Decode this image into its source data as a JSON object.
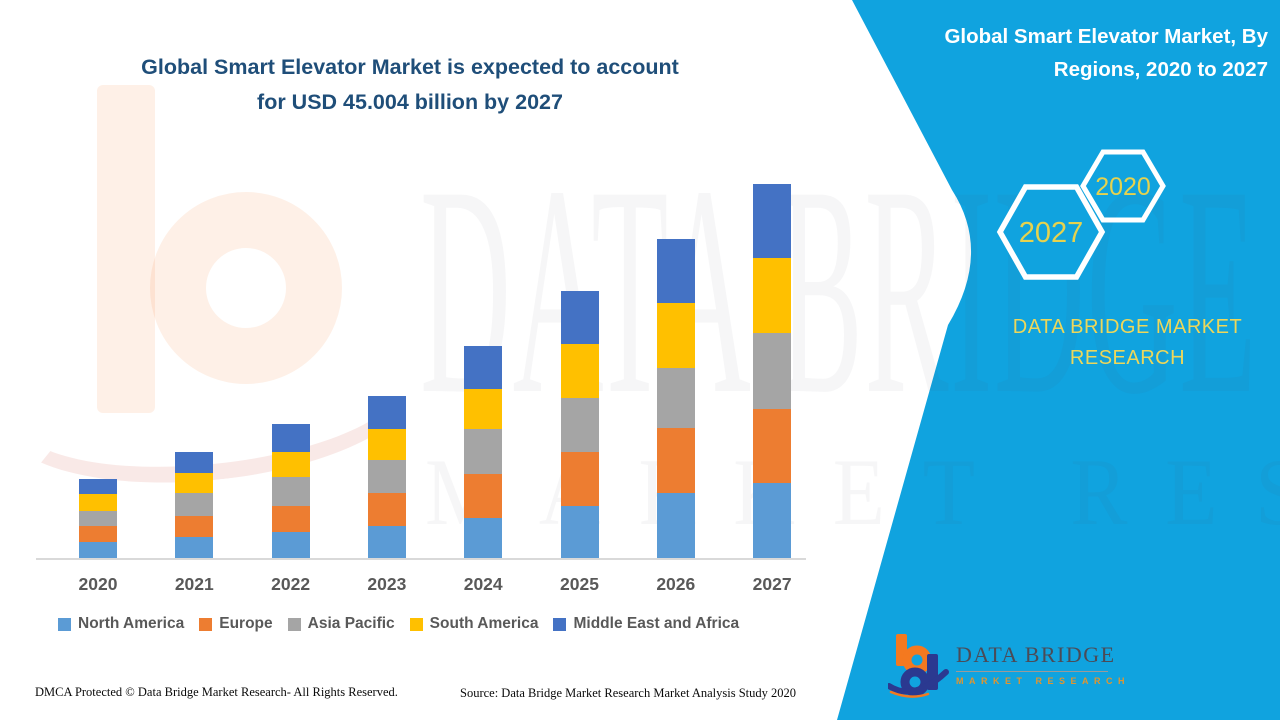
{
  "page": {
    "accent_teal": "#10A3DF",
    "title_color": "#1F4E79",
    "axis_line_color": "#D9D9D9",
    "label_color": "#595959"
  },
  "main_title": {
    "line1": "Global Smart Elevator Market is expected to account",
    "line2": "for USD 45.004 billion by 2027"
  },
  "side_panel": {
    "title_line1": "Global Smart Elevator Market, By",
    "title_line2": "Regions, 2020 to 2027",
    "hexagons": [
      {
        "label": "2027"
      },
      {
        "label": "2020"
      }
    ],
    "hex_label_color": "#E6D24E",
    "brand_line1": "DATA BRIDGE MARKET",
    "brand_line2": "RESEARCH",
    "brand_color": "#EDD75A"
  },
  "chart_data": {
    "type": "bar",
    "stacked": true,
    "title": "Global Smart Elevator Market, By Regions, 2020 to 2027",
    "unit": "USD billion",
    "categories": [
      "2020",
      "2021",
      "2022",
      "2023",
      "2024",
      "2025",
      "2026",
      "2027"
    ],
    "series": [
      {
        "name": "North America",
        "color": "#5B9BD5",
        "values": [
          1.9,
          2.5,
          3.1,
          3.9,
          4.8,
          6.3,
          7.8,
          9.0
        ]
      },
      {
        "name": "Europe",
        "color": "#ED7D31",
        "values": [
          1.9,
          2.5,
          3.2,
          3.9,
          5.3,
          6.4,
          7.8,
          8.9
        ]
      },
      {
        "name": "Asia Pacific",
        "color": "#A5A5A5",
        "values": [
          1.9,
          2.8,
          3.4,
          4.0,
          5.4,
          6.6,
          7.3,
          9.2
        ]
      },
      {
        "name": "South America",
        "color": "#FFC000",
        "values": [
          2.0,
          2.4,
          3.0,
          3.7,
          4.8,
          6.4,
          7.8,
          9.0
        ]
      },
      {
        "name": "Middle East and Africa",
        "color": "#4472C4",
        "values": [
          1.8,
          2.6,
          3.4,
          4.0,
          5.2,
          6.4,
          7.7,
          8.9
        ]
      }
    ],
    "ylim": [
      0,
      45.0
    ],
    "grid": false,
    "y_axis_visible": false,
    "legend_position": "bottom",
    "annotation_2027_total": "45.004"
  },
  "watermark": {
    "text_primary": "DATA BRIDGE",
    "text_secondary": "MARKET RESEARCH"
  },
  "logo": {
    "name": "DATA BRIDGE",
    "subtitle": "MARKET RESEARCH"
  },
  "footer": {
    "left": "DMCA Protected © Data Bridge Market Research- All Rights Reserved.",
    "right": "Source: Data Bridge Market Research Market Analysis Study 2020"
  }
}
